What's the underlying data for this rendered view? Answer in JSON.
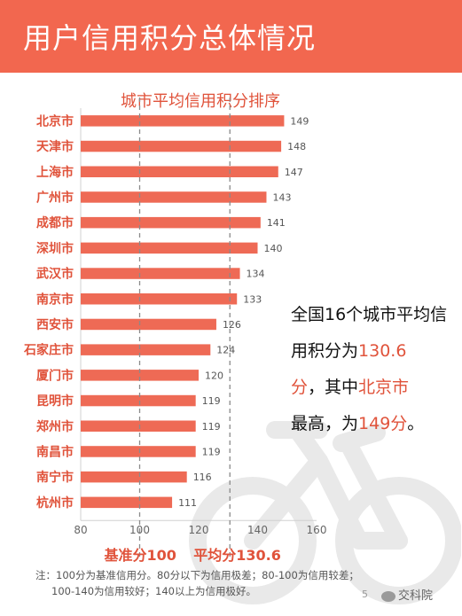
{
  "header": {
    "title": "用户信用积分总体情况"
  },
  "colors": {
    "accent": "#f2674f",
    "bar": "#ee6a55",
    "label": "#e0533b",
    "bike": "#e9e9e9"
  },
  "chart_data": {
    "type": "bar",
    "orientation": "horizontal",
    "title": "城市平均信用积分排序",
    "categories": [
      "北京市",
      "天津市",
      "上海市",
      "广州市",
      "成都市",
      "深圳市",
      "武汉市",
      "南京市",
      "西安市",
      "石家庄市",
      "厦门市",
      "昆明市",
      "郑州市",
      "南昌市",
      "南宁市",
      "杭州市"
    ],
    "values": [
      149,
      148,
      147,
      143,
      141,
      140,
      134,
      133,
      126,
      124,
      120,
      119,
      119,
      119,
      116,
      111
    ],
    "xlim": [
      80,
      160
    ],
    "xticks": [
      80,
      100,
      120,
      140,
      160
    ],
    "reference_lines": [
      {
        "value": 100,
        "label": "基准分100"
      },
      {
        "value": 130.6,
        "label": "平均分130.6"
      }
    ],
    "grid": false
  },
  "callout": {
    "part1": "全国16个城市平均信用积分为",
    "highlight1": "130.6",
    "part2": "分",
    "part3": "，其中",
    "highlight2": "北京市",
    "part4": "最高，为",
    "highlight3": "149分",
    "part5": "。"
  },
  "footnote": {
    "line1": "注：100分为基准信用分。80分以下为信用极差；80-100为信用较差；",
    "line2": "100-140为信用较好；140以上为信用极好。"
  },
  "page_number": "5",
  "watermark": {
    "text": "交科院",
    "icon": "wechat-icon"
  },
  "background_icon": "bicycle-icon"
}
